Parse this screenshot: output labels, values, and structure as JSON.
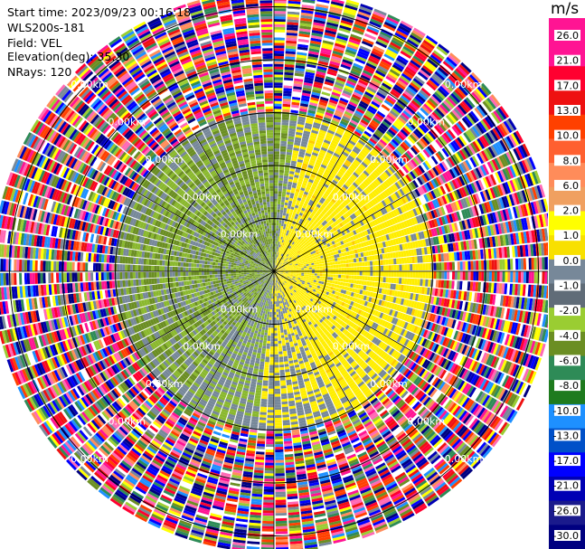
{
  "header": {
    "start_time": "Start time: 2023/09/23 00:16:18",
    "instrument": "WLS200s-181",
    "field": "Field: VEL",
    "elevation": "Elevation(deg): 35.30",
    "nrays": "NRays: 120"
  },
  "chart_data": {
    "type": "heatmap",
    "projection": "polar-ppi",
    "field": "VEL",
    "n_rays": 120,
    "elevation_deg": 35.3,
    "range_rings_km": [
      1,
      2,
      3,
      4,
      5
    ],
    "ring_label": "0.00km",
    "clean_data_range_km": 3.0,
    "max_range_km": 5.3,
    "colorbar": {
      "unit": "m/s",
      "ticks": [
        "26.0",
        "21.0",
        "17.0",
        "13.0",
        "10.0",
        "8.0",
        "6.0",
        "2.0",
        "1.0",
        "0.0",
        "-1.0",
        "-2.0",
        "-4.0",
        "-6.0",
        "-8.0",
        "-10.0",
        "-13.0",
        "-17.0",
        "-21.0",
        "-26.0",
        "-30.0"
      ],
      "colors": [
        "#ff1493",
        "#ff1493",
        "#ff0030",
        "#ee1111",
        "#ff4000",
        "#ff6030",
        "#ff8c5a",
        "#f0a060",
        "#ffff00",
        "#f8e000",
        "#778899",
        "#606c78",
        "#9acd32",
        "#6b8e23",
        "#2e8b57",
        "#1e7b1e",
        "#1e90ff",
        "#0050c8",
        "#0000ff",
        "#0000b4",
        "#1a1a8c",
        "#000080"
      ]
    },
    "velocity_pattern": {
      "positive_sector_center_deg": 85,
      "negative_sector_center_deg": 290,
      "dominant_positive_color": "#ffee00",
      "dominant_negative_color": "#8ab82e",
      "near_zero_color": "#778899"
    }
  }
}
